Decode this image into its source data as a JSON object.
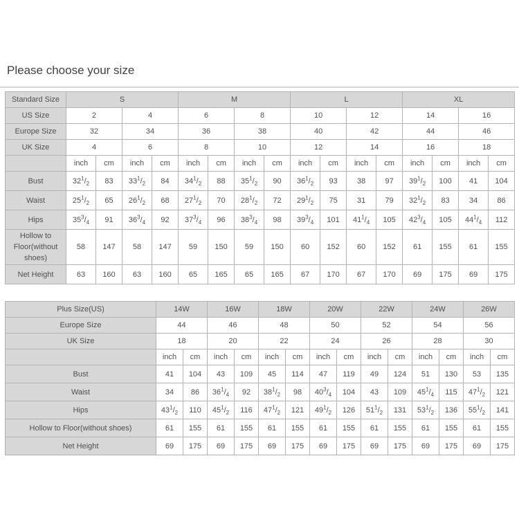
{
  "page": {
    "title": "Please choose your size"
  },
  "colors": {
    "header_bg": "#d7d7d7",
    "border": "#b2b2b2",
    "text": "#4f4f4f",
    "background": "#ffffff"
  },
  "table1": {
    "size_header_label": "Standard Size",
    "size_groups": [
      "S",
      "M",
      "L",
      "XL"
    ],
    "header_rows": [
      {
        "label": "US Size",
        "values": [
          "2",
          "4",
          "6",
          "8",
          "10",
          "12",
          "14",
          "16"
        ]
      },
      {
        "label": "Europe Size",
        "values": [
          "32",
          "34",
          "36",
          "38",
          "40",
          "42",
          "44",
          "46"
        ]
      },
      {
        "label": "UK Size",
        "values": [
          "4",
          "6",
          "8",
          "10",
          "12",
          "14",
          "16",
          "18"
        ]
      }
    ],
    "unit_labels": [
      "inch",
      "cm"
    ],
    "measure_rows": [
      {
        "label": "Bust",
        "values": [
          "32 1/2",
          "83",
          "33 1/2",
          "84",
          "34 1/2",
          "88",
          "35 1/2",
          "90",
          "36 1/2",
          "93",
          "38",
          "97",
          "39 1/2",
          "100",
          "41",
          "104"
        ]
      },
      {
        "label": "Waist",
        "values": [
          "25 1/2",
          "65",
          "26 1/2",
          "68",
          "27 1/2",
          "70",
          "28 1/2",
          "72",
          "29 1/2",
          "75",
          "31",
          "79",
          "32 1/2",
          "83",
          "34",
          "86"
        ]
      },
      {
        "label": "Hips",
        "values": [
          "35 3/4",
          "91",
          "36 3/4",
          "92",
          "37 3/4",
          "96",
          "38 3/4",
          "98",
          "39 3/4",
          "101",
          "41 1/4",
          "105",
          "42 3/4",
          "105",
          "44 1/4",
          "112"
        ]
      },
      {
        "label": "Hollow to Floor(without shoes)",
        "values": [
          "58",
          "147",
          "58",
          "147",
          "59",
          "150",
          "59",
          "150",
          "60",
          "152",
          "60",
          "152",
          "61",
          "155",
          "61",
          "155"
        ]
      },
      {
        "label": "Net Height",
        "values": [
          "63",
          "160",
          "63",
          "160",
          "65",
          "165",
          "65",
          "165",
          "67",
          "170",
          "67",
          "170",
          "69",
          "175",
          "69",
          "175"
        ]
      }
    ]
  },
  "table2": {
    "size_header_label": "Plus Size(US)",
    "size_groups": [
      "14W",
      "16W",
      "18W",
      "20W",
      "22W",
      "24W",
      "26W"
    ],
    "header_rows": [
      {
        "label": "Europe Size",
        "values": [
          "44",
          "46",
          "48",
          "50",
          "52",
          "54",
          "56"
        ]
      },
      {
        "label": "UK Size",
        "values": [
          "18",
          "20",
          "22",
          "24",
          "26",
          "28",
          "30"
        ]
      }
    ],
    "unit_labels": [
      "inch",
      "cm"
    ],
    "measure_rows": [
      {
        "label": "Bust",
        "values": [
          "41",
          "104",
          "43",
          "109",
          "45",
          "114",
          "47",
          "119",
          "49",
          "124",
          "51",
          "130",
          "53",
          "135"
        ]
      },
      {
        "label": "Waist",
        "values": [
          "34",
          "86",
          "36 1/4",
          "92",
          "38 1/2",
          "98",
          "40 3/4",
          "104",
          "43",
          "109",
          "45 1/4",
          "115",
          "47 1/2",
          "121"
        ]
      },
      {
        "label": "Hips",
        "values": [
          "43 1/2",
          "110",
          "45 1/2",
          "116",
          "47 1/2",
          "121",
          "49 1/2",
          "126",
          "51 1/2",
          "131",
          "53 1/2",
          "136",
          "55 1/2",
          "141"
        ]
      },
      {
        "label": "Hollow to Floor(without shoes)",
        "values": [
          "61",
          "155",
          "61",
          "155",
          "61",
          "155",
          "61",
          "155",
          "61",
          "155",
          "61",
          "155",
          "61",
          "155"
        ]
      },
      {
        "label": "Net Height",
        "values": [
          "69",
          "175",
          "69",
          "175",
          "69",
          "175",
          "69",
          "175",
          "69",
          "175",
          "69",
          "175",
          "69",
          "175"
        ]
      }
    ]
  }
}
